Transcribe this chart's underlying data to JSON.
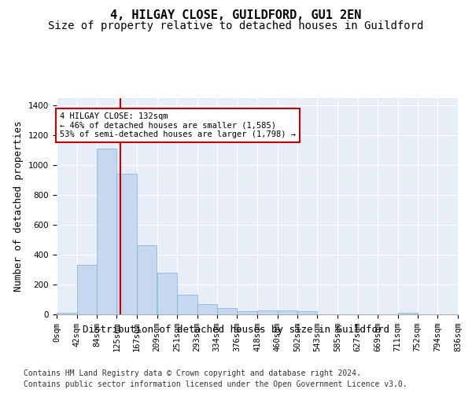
{
  "title": "4, HILGAY CLOSE, GUILDFORD, GU1 2EN",
  "subtitle": "Size of property relative to detached houses in Guildford",
  "xlabel": "Distribution of detached houses by size in Guildford",
  "ylabel": "Number of detached properties",
  "footer_line1": "Contains HM Land Registry data © Crown copyright and database right 2024.",
  "footer_line2": "Contains public sector information licensed under the Open Government Licence v3.0.",
  "bar_lefts": [
    0,
    42,
    84,
    125,
    167,
    209,
    251,
    293,
    334,
    376,
    418,
    460,
    502,
    543,
    585,
    627,
    669,
    711,
    752,
    794
  ],
  "bar_widths": [
    42,
    42,
    41,
    42,
    42,
    42,
    42,
    41,
    42,
    42,
    42,
    42,
    41,
    42,
    42,
    42,
    42,
    41,
    42,
    42
  ],
  "bar_heights": [
    10,
    330,
    1110,
    945,
    465,
    278,
    132,
    70,
    40,
    22,
    25,
    25,
    20,
    0,
    0,
    0,
    0,
    13,
    0,
    0
  ],
  "xtick_positions": [
    0,
    42,
    84,
    125,
    167,
    209,
    251,
    293,
    334,
    376,
    418,
    460,
    502,
    543,
    585,
    627,
    669,
    711,
    752,
    794,
    836
  ],
  "xtick_labels": [
    "0sqm",
    "42sqm",
    "84sqm",
    "125sqm",
    "167sqm",
    "209sqm",
    "251sqm",
    "293sqm",
    "334sqm",
    "376sqm",
    "418sqm",
    "460sqm",
    "502sqm",
    "543sqm",
    "585sqm",
    "627sqm",
    "669sqm",
    "711sqm",
    "752sqm",
    "794sqm",
    "836sqm"
  ],
  "bar_color": "#c5d8f0",
  "bar_edge_color": "#7aafd4",
  "vline_x": 132,
  "vline_color": "#cc0000",
  "annotation_text": "4 HILGAY CLOSE: 132sqm\n← 46% of detached houses are smaller (1,585)\n53% of semi-detached houses are larger (1,798) →",
  "ylim": [
    0,
    1450
  ],
  "xlim": [
    0,
    836
  ],
  "yticks": [
    0,
    200,
    400,
    600,
    800,
    1000,
    1200,
    1400
  ],
  "bg_color": "#e8eef8",
  "fig_bg_color": "#ffffff",
  "title_fontsize": 11,
  "subtitle_fontsize": 10,
  "axis_label_fontsize": 9,
  "tick_fontsize": 7.5,
  "footer_fontsize": 7
}
